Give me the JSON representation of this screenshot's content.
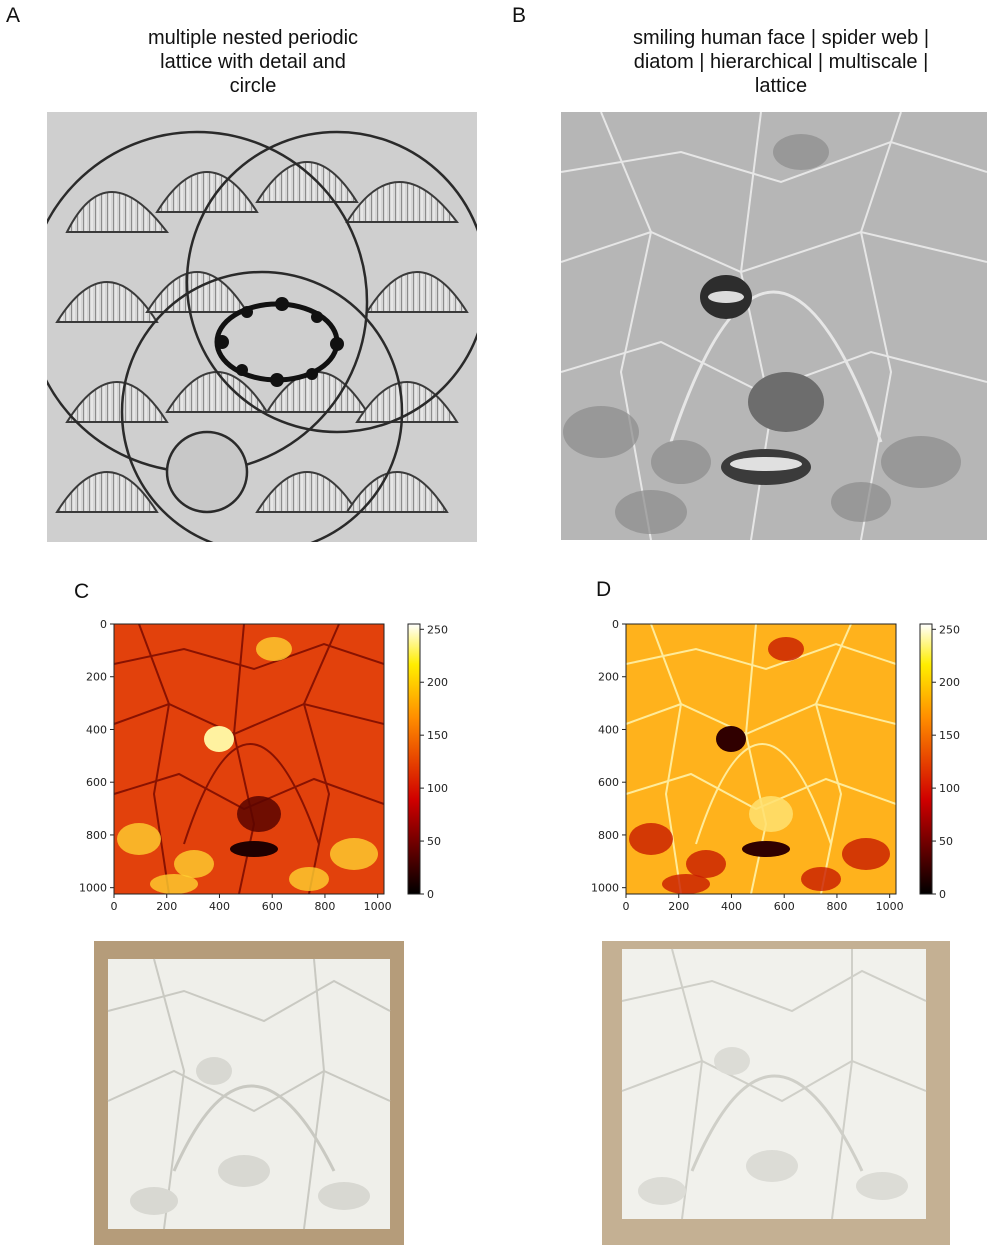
{
  "panels": {
    "A": {
      "letter": "A",
      "caption_lines": [
        "multiple nested periodic",
        "lattice with detail and",
        "circle"
      ]
    },
    "B": {
      "letter": "B",
      "caption_lines": [
        "smiling human face | spider web |",
        "diatom | hierarchical | multiscale |",
        "lattice"
      ]
    },
    "C": {
      "letter": "C"
    },
    "D": {
      "letter": "D"
    }
  },
  "colors": {
    "gray_bg": "#c9c9c9",
    "lattice_dark": "#333333",
    "wood": "#b49a78",
    "plaster": "#eeeeea",
    "hot_low": "#000000",
    "hot_mid": "#e01000",
    "hot_high": "#ffffff"
  },
  "chart_data": [
    {
      "type": "heatmap",
      "panel": "C",
      "colormap": "hot",
      "x_ticks": [
        "0",
        "200",
        "400",
        "600",
        "800",
        "1000"
      ],
      "y_ticks": [
        "0",
        "200",
        "400",
        "600",
        "800",
        "1000"
      ],
      "xlim": [
        0,
        1024
      ],
      "ylim": [
        1024,
        0
      ],
      "colorbar": {
        "range": [
          0,
          255
        ],
        "ticks": [
          "250",
          "200",
          "150",
          "100",
          "50",
          "0"
        ]
      }
    },
    {
      "type": "heatmap",
      "panel": "D",
      "colormap": "hot",
      "x_ticks": [
        "0",
        "200",
        "400",
        "600",
        "800",
        "1000"
      ],
      "y_ticks": [
        "0",
        "200",
        "400",
        "600",
        "800",
        "1000"
      ],
      "xlim": [
        0,
        1024
      ],
      "ylim": [
        1024,
        0
      ],
      "colorbar": {
        "range": [
          0,
          255
        ],
        "ticks": [
          "250",
          "200",
          "150",
          "100",
          "50",
          "0"
        ]
      }
    }
  ]
}
